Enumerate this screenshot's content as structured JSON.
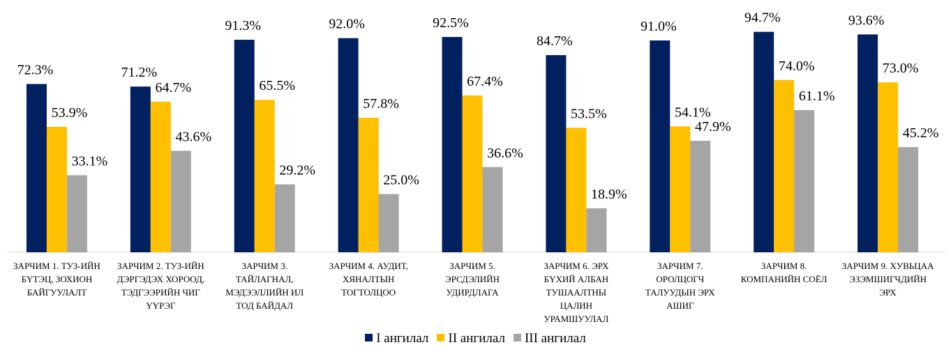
{
  "chart_data": {
    "type": "bar",
    "categories": [
      "ЗАРЧИМ 1. ТУЗ-ИЙН БҮТЭЦ, ЗОХИОН БАЙГУУЛАЛТ",
      "ЗАРЧИМ 2. ТУЗ-ИЙН ДЭРГЭДЭХ ХОРООД, ТЭДГЭЭРИЙН ЧИГ ҮҮРЭГ",
      "ЗАРЧИМ 3. ТАЙЛАГНАЛ, МЭДЭЭЛЛИЙН ИЛ ТОД БАЙДАЛ",
      "ЗАРЧИМ 4. АУДИТ, ХЯНАЛТЫН ТОГТОЛЦОО",
      "ЗАРЧИМ 5. ЭРСДЭЛИЙН УДИРДЛАГА",
      "ЗАРЧИМ 6. ЭРХ БҮХИЙ АЛБАН ТУШААЛТНЫ ЦАЛИН УРАМШУУЛАЛ",
      "ЗАРЧИМ 7. ОРОЛЦОГЧ ТАЛУУДЫН ЭРХ АШИГ",
      "ЗАРЧИМ 8. КОМПАНИЙН СОЁЛ",
      "ЗАРЧИМ 9. ХУВЬЦАА ЭЗЭМШИГЧДИЙН ЭРХ"
    ],
    "series": [
      {
        "name": "I ангилал",
        "color": "#002060",
        "values": [
          72.3,
          71.2,
          91.3,
          92.0,
          92.5,
          84.7,
          91.0,
          94.7,
          93.6
        ],
        "value_labels": [
          "72.3%",
          "71.2%",
          "91.3%",
          "92.0%",
          "92.5%",
          "84.7%",
          "91.0%",
          "94.7%",
          "93.6%"
        ]
      },
      {
        "name": "II ангилал",
        "color": "#ffc000",
        "values": [
          53.9,
          64.7,
          65.5,
          57.8,
          67.4,
          53.5,
          54.1,
          74.0,
          73.0
        ],
        "value_labels": [
          "53.9%",
          "64.7%",
          "65.5%",
          "57.8%",
          "67.4%",
          "53.5%",
          "54.1%",
          "74.0%",
          "73.0%"
        ]
      },
      {
        "name": "III ангилал",
        "color": "#a5a5a5",
        "values": [
          33.1,
          43.6,
          29.2,
          25.0,
          36.6,
          18.9,
          47.9,
          61.1,
          45.2
        ],
        "value_labels": [
          "33.1%",
          "43.6%",
          "29.2%",
          "25.0%",
          "36.6%",
          "18.9%",
          "47.9%",
          "61.1%",
          "45.2%"
        ]
      }
    ],
    "ylim": [
      0,
      100
    ],
    "legend": "bottom"
  }
}
